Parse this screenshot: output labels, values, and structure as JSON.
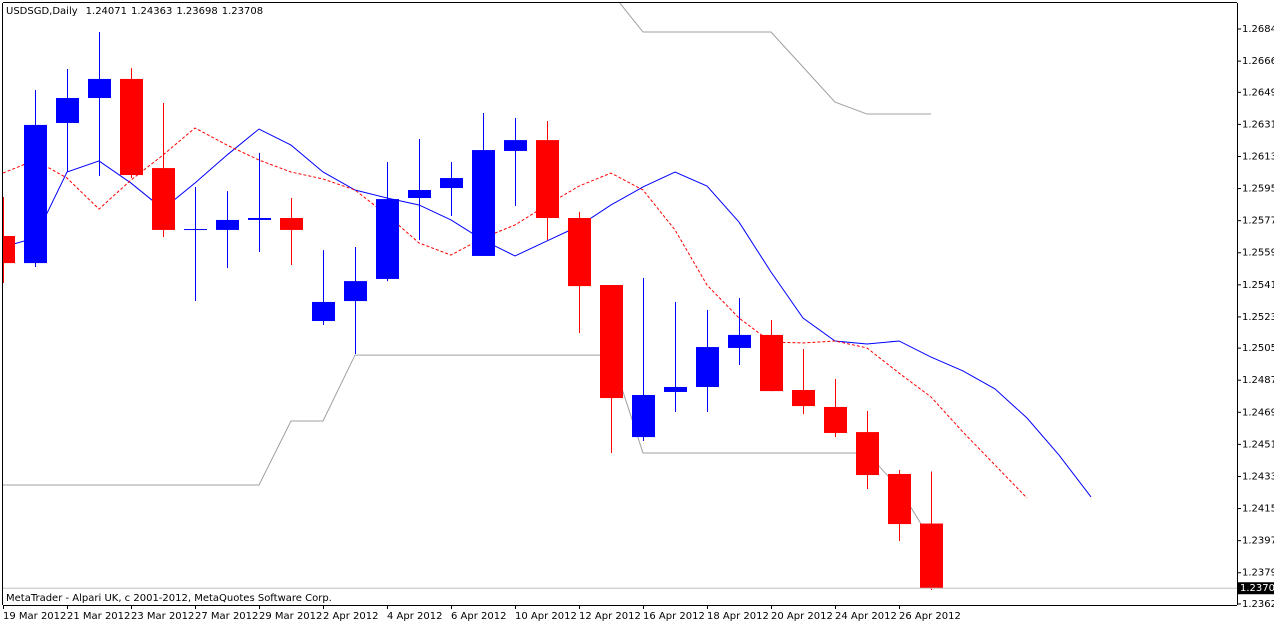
{
  "chart_data": {
    "type": "candlestick",
    "title": "USDSGD,Daily",
    "annotation": "MetaTrader - Alpari UK, c 2001-2012, MetaQuotes Software Corp.",
    "up_color": "#0000ff",
    "down_color": "#ff0000",
    "categories": [
      "19 Mar 2012",
      null,
      "21 Mar 2012",
      null,
      "23 Mar 2012",
      null,
      "27 Mar 2012",
      null,
      "29 Mar 2012",
      null,
      "2 Apr 2012",
      null,
      "4 Apr 2012",
      null,
      "6 Apr 2012",
      null,
      "10 Apr 2012",
      null,
      "12 Apr 2012",
      null,
      "16 Apr 2012",
      null,
      "18 Apr 2012",
      null,
      "20 Apr 2012",
      null,
      "24 Apr 2012",
      null,
      "26 Apr 2012",
      null,
      null,
      null,
      null,
      null,
      null
    ],
    "open": [
      1.25684,
      1.25532,
      1.26318,
      1.26458,
      1.26565,
      1.26065,
      1.25723,
      1.25718,
      1.25774,
      1.25785,
      1.25207,
      1.25319,
      1.25443,
      1.25897,
      1.25953,
      1.25572,
      1.26161,
      1.26222,
      1.25785,
      1.25409,
      1.24556,
      1.24809,
      1.24837,
      1.25056,
      1.25129,
      1.2482,
      1.24725,
      1.24584,
      1.24349,
      1.24071,
      null,
      null,
      null,
      null,
      null
    ],
    "high": [
      1.25903,
      1.26503,
      1.26621,
      1.26828,
      1.26626,
      1.2643,
      1.25959,
      1.25936,
      1.2615,
      1.25897,
      1.25605,
      1.25622,
      1.26099,
      1.26228,
      1.26099,
      1.26374,
      1.26346,
      1.26329,
      1.25819,
      1.25409,
      1.25448,
      1.25314,
      1.25269,
      1.25336,
      1.25213,
      1.2505,
      1.24882,
      1.24702,
      1.24371,
      1.24363,
      null,
      null,
      null,
      null,
      null
    ],
    "low": [
      1.2542,
      1.2551,
      1.26043,
      1.26021,
      1.26009,
      1.25678,
      1.25319,
      1.25504,
      1.25594,
      1.25521,
      1.25185,
      1.25022,
      1.25431,
      1.25661,
      1.25796,
      1.25572,
      1.25852,
      1.25661,
      1.2514,
      1.24467,
      1.24534,
      1.24697,
      1.24697,
      1.2496,
      1.24814,
      1.24685,
      1.24556,
      1.24265,
      1.23973,
      1.23698,
      null,
      null,
      null,
      null,
      null
    ],
    "close": [
      1.25532,
      1.26307,
      1.26458,
      1.26565,
      1.26026,
      1.25718,
      1.25723,
      1.25774,
      1.25785,
      1.25718,
      1.25314,
      1.25431,
      1.25891,
      1.25942,
      1.26009,
      1.26166,
      1.26222,
      1.25785,
      1.25403,
      1.24775,
      1.24792,
      1.24837,
      1.25061,
      1.25129,
      1.24814,
      1.2473,
      1.24579,
      1.24343,
      1.24068,
      1.23708,
      null,
      null,
      null,
      null,
      null
    ],
    "lines": [
      {
        "color": "#0000ff",
        "dashed": false,
        "values": [
          1.25622,
          1.25673,
          1.26043,
          1.26105,
          1.25981,
          1.25835,
          1.25981,
          1.26138,
          1.26284,
          1.26194,
          1.26043,
          1.25942,
          1.25897,
          1.25858,
          1.25774,
          1.25661,
          1.25572,
          1.25656,
          1.2574,
          1.25858,
          1.25959,
          1.26043,
          1.25964,
          1.25762,
          1.25482,
          1.25224,
          1.25095,
          1.25078,
          1.25095,
          1.25005,
          1.24927,
          1.24826,
          1.24663,
          1.24455,
          1.2422
        ]
      },
      {
        "color": "#ff0000",
        "dashed": true,
        "values": [
          1.26037,
          1.2611,
          1.26009,
          1.25835,
          1.25998,
          1.26138,
          1.2629,
          1.26194,
          1.2611,
          1.26043,
          1.26004,
          1.25942,
          1.25802,
          1.25645,
          1.25577,
          1.25673,
          1.25746,
          1.25858,
          1.25964,
          1.26037,
          1.25942,
          1.25718,
          1.25409,
          1.25224,
          1.25089,
          1.25084,
          1.25095,
          1.25056,
          1.24915,
          1.24781,
          1.24584,
          1.24399,
          1.24214,
          null,
          null
        ]
      },
      {
        "color": "#a0a0a0",
        "dashed": false,
        "values": [
          1.24287,
          1.24287,
          1.24287,
          1.24287,
          1.24287,
          1.24287,
          1.24287,
          1.24287,
          1.24287,
          1.24646,
          1.24646,
          1.25016,
          1.25016,
          1.25016,
          1.25016,
          1.25016,
          1.25016,
          1.25016,
          1.25016,
          1.25016,
          1.24467,
          1.24467,
          1.24467,
          1.24467,
          1.24467,
          1.24467,
          1.24467,
          1.24467,
          1.2427,
          1.23978,
          null,
          null,
          null,
          null,
          null
        ]
      },
      {
        "color": "#a0a0a0",
        "dashed": false,
        "values": [
          null,
          null,
          null,
          null,
          null,
          null,
          null,
          null,
          null,
          null,
          null,
          null,
          null,
          null,
          null,
          null,
          null,
          null,
          null,
          1.27053,
          1.26828,
          1.26828,
          1.26828,
          1.26828,
          1.26828,
          1.26632,
          1.26435,
          1.26368,
          1.26368,
          1.26368,
          null,
          null,
          null,
          null,
          null
        ]
      }
    ],
    "ylim": [
      1.23614,
      1.26991
    ],
    "yticks": [
      1.26845,
      1.26665,
      {
        "value": 1.2649,
        "label": "1.26490"
      },
      {
        "value": 1.2631,
        "label": "1.26310"
      },
      {
        "value": 1.2613,
        "label": "1.26130"
      },
      {
        "value": 1.2595,
        "label": "1.25950"
      },
      {
        "value": 1.2577,
        "label": "1.25770"
      },
      {
        "value": 1.2559,
        "label": "1.25590"
      },
      {
        "value": 1.2541,
        "label": "1.25410"
      },
      {
        "value": 1.2523,
        "label": "1.25230"
      },
      1.25055,
      1.24875,
      1.24695,
      1.24515,
      1.24335,
      1.24155,
      1.23975,
      1.23795,
      {
        "value": 1.2362,
        "label": "1.23620"
      }
    ]
  }
}
